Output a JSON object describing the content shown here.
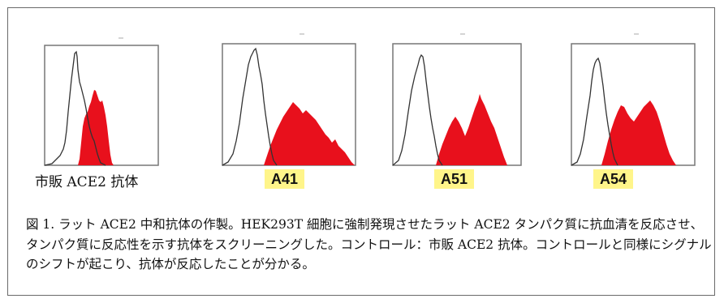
{
  "figure": {
    "panels": [
      {
        "id": "commercial",
        "label": "市販 ACE2 抗体",
        "highlight": false,
        "fill_color": "#e8101c",
        "outline_color": "#333333"
      },
      {
        "id": "a41",
        "label": "A41",
        "highlight": true,
        "fill_color": "#e8101c",
        "outline_color": "#333333"
      },
      {
        "id": "a51",
        "label": "A51",
        "highlight": true,
        "fill_color": "#e8101c",
        "outline_color": "#333333"
      },
      {
        "id": "a54",
        "label": "A54",
        "highlight": true,
        "fill_color": "#e8101c",
        "outline_color": "#333333"
      }
    ],
    "caption": "図 1. ラット ACE2 中和抗体の作製。HEK293T 細胞に強制発現させたラット ACE2 タンパク質に抗血清を反応させ、タンパク質に反応性を示す抗体をスクリーニングした。コントロール：市販 ACE2 抗体。コントロールと同様にシグナルのシフトが起こり、抗体が反応したことが分かる。",
    "highlight_color": "#fff58a"
  }
}
